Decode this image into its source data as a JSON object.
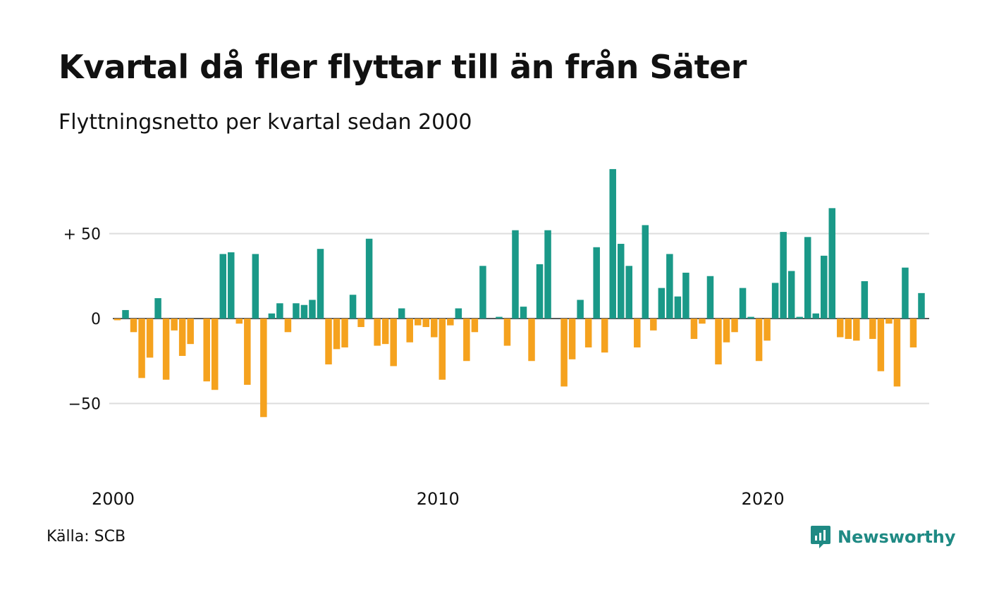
{
  "header": {
    "title": "Kvartal då fler flyttar till än från Säter",
    "subtitle": "Flyttningsnetto per kvartal sedan 2000"
  },
  "footer": {
    "source": "Källa: SCB",
    "brand": "Newsworthy",
    "brand_icon": "newsworthy-logo-icon"
  },
  "colors": {
    "positive": "#1a9988",
    "negative": "#f5a21e",
    "grid": "#dddddd",
    "brand": "#1f8a84"
  },
  "chart_data": {
    "type": "bar",
    "title": "Kvartal då fler flyttar till än från Säter",
    "subtitle": "Flyttningsnetto per kvartal sedan 2000",
    "x_ticks": [
      "2000",
      "2010",
      "2020"
    ],
    "y_ticks": [
      {
        "value": 50,
        "label": "+ 50"
      },
      {
        "value": 0,
        "label": "0"
      },
      {
        "value": -50,
        "label": "−50"
      }
    ],
    "ylim": [
      -85,
      95
    ],
    "grid": true,
    "start_year": 2000,
    "values": [
      -1,
      5,
      -8,
      -35,
      -23,
      12,
      -36,
      -7,
      -22,
      -15,
      0,
      -37,
      -42,
      38,
      39,
      -3,
      -39,
      38,
      -58,
      3,
      9,
      -8,
      9,
      8,
      11,
      41,
      -27,
      -18,
      -17,
      14,
      -5,
      47,
      -16,
      -15,
      -28,
      6,
      -14,
      -4,
      -5,
      -11,
      -36,
      -4,
      6,
      -25,
      -8,
      31,
      0,
      1,
      -16,
      52,
      7,
      -25,
      32,
      52,
      0,
      -40,
      -24,
      11,
      -17,
      42,
      -20,
      88,
      44,
      31,
      -17,
      55,
      -7,
      18,
      38,
      13,
      27,
      -12,
      -3,
      25,
      -27,
      -14,
      -8,
      18,
      1,
      -25,
      -13,
      21,
      51,
      28,
      1,
      48,
      3,
      37,
      65,
      -11,
      -12,
      -13,
      22,
      -12,
      -31,
      -3,
      -40,
      30,
      -17,
      15
    ]
  }
}
